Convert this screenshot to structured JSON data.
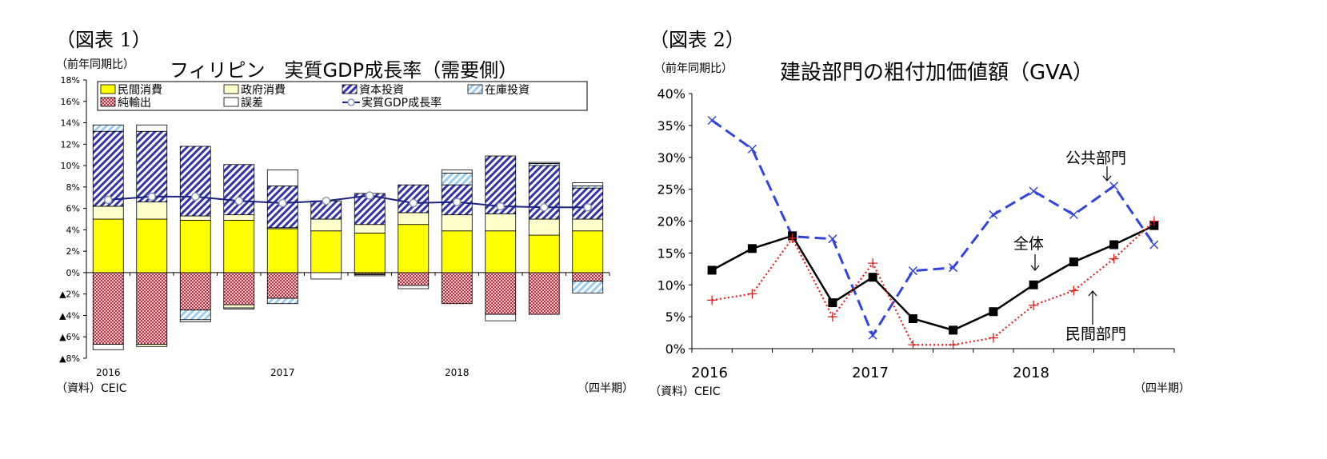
{
  "chart1": {
    "panel_label": "（図表 1）",
    "unit": "（前年同期比）",
    "title": "フィリピン　実質GDP成長率（需要側）",
    "source": "（資料）CEIC",
    "period_label": "（四半期）",
    "chart_data": {
      "type": "bar",
      "stacked": true,
      "categories": [
        "2016Q1",
        "2016Q2",
        "2016Q3",
        "2016Q4",
        "2017Q1",
        "2017Q2",
        "2017Q3",
        "2017Q4",
        "2018Q1",
        "2018Q2",
        "2018Q3",
        "2018Q4"
      ],
      "x_tick_labels": [
        {
          "label": "2016",
          "index": 0
        },
        {
          "label": "2017",
          "index": 4
        },
        {
          "label": "2018",
          "index": 8
        }
      ],
      "ylim": [
        -8,
        18
      ],
      "y_ticks": [
        -8,
        -6,
        -4,
        -2,
        0,
        2,
        4,
        6,
        8,
        10,
        12,
        14,
        16,
        18
      ],
      "y_tick_labels": [
        "▲8%",
        "▲6%",
        "▲4%",
        "▲2%",
        "0%",
        "2%",
        "4%",
        "6%",
        "8%",
        "10%",
        "12%",
        "14%",
        "16%",
        "18%"
      ],
      "series": [
        {
          "name": "民間消費",
          "color": "#ffff00",
          "pattern": "solid",
          "values": [
            5.0,
            5.0,
            4.9,
            4.9,
            4.1,
            3.9,
            3.7,
            4.5,
            3.9,
            3.9,
            3.5,
            3.9
          ]
        },
        {
          "name": "政府消費",
          "color": "#ffffcc",
          "pattern": "solid",
          "values": [
            1.2,
            1.6,
            0.4,
            0.5,
            0.1,
            1.1,
            0.8,
            1.1,
            1.5,
            1.6,
            1.5,
            1.1
          ]
        },
        {
          "name": "資本投資",
          "color": "#3333aa",
          "pattern": "diagonal",
          "values": [
            7.0,
            6.6,
            6.5,
            4.7,
            3.9,
            1.7,
            2.9,
            2.6,
            2.8,
            5.4,
            5.0,
            2.9
          ]
        },
        {
          "name": "在庫投資",
          "color": "#99ccee",
          "pattern": "diagonal-light",
          "values": [
            0.6,
            0,
            0,
            0,
            0,
            0,
            0,
            0,
            1.1,
            0,
            0.2,
            0.2
          ]
        },
        {
          "name": "純輸出",
          "color": "#c04050",
          "pattern": "crosshatch",
          "values": [
            -6.7,
            -6.7,
            -3.5,
            -3.0,
            -2.4,
            0,
            -0.1,
            -1.2,
            -2.9,
            -3.9,
            -3.9,
            -0.8
          ]
        },
        {
          "name": "誤差",
          "color": "#ffffff",
          "pattern": "solid",
          "values": [
            -0.5,
            0.6,
            -0.2,
            -0.1,
            1.5,
            -0.6,
            -0.1,
            -0.3,
            0.3,
            -0.6,
            0.1,
            0.3
          ]
        }
      ],
      "negative_extra": [
        {
          "name": "在庫投資",
          "values": [
            0,
            0,
            -0.9,
            0,
            -0.5,
            0,
            0,
            0,
            0,
            0,
            0,
            -1.1
          ]
        },
        {
          "name": "政府消費",
          "values": [
            0,
            -0.2,
            0,
            -0.3,
            0,
            0,
            -0.1,
            0,
            0,
            0,
            0,
            0
          ]
        }
      ],
      "line": {
        "name": "実質GDP成長率",
        "color": "#1a237e",
        "values": [
          6.8,
          7.1,
          7.1,
          6.7,
          6.5,
          6.7,
          7.2,
          6.5,
          6.6,
          6.2,
          6.1,
          6.1
        ]
      },
      "legend_position": "top"
    }
  },
  "chart2": {
    "panel_label": "（図表 2）",
    "unit": "（前年同期比）",
    "title": "建設部門の粗付加価値額（GVA）",
    "source": "（資料）CEIC",
    "period_label": "（四半期）",
    "chart_data": {
      "type": "line",
      "categories": [
        "2016Q1",
        "2016Q2",
        "2016Q3",
        "2016Q4",
        "2017Q1",
        "2017Q2",
        "2017Q3",
        "2017Q4",
        "2018Q1",
        "2018Q2",
        "2018Q3",
        "2018Q4"
      ],
      "x_tick_labels": [
        {
          "label": "2016",
          "index": 0
        },
        {
          "label": "2017",
          "index": 4
        },
        {
          "label": "2018",
          "index": 8
        }
      ],
      "ylim": [
        0,
        40
      ],
      "y_ticks": [
        0,
        5,
        10,
        15,
        20,
        25,
        30,
        35,
        40
      ],
      "y_tick_labels": [
        "0%",
        "5%",
        "10%",
        "15%",
        "20%",
        "25%",
        "30%",
        "35%",
        "40%"
      ],
      "series": [
        {
          "name": "公共部門",
          "color": "#3344dd",
          "style": "dashed",
          "marker": "x",
          "values": [
            35.8,
            31.3,
            17.6,
            17.2,
            2.1,
            12.2,
            12.7,
            21.0,
            24.7,
            21.0,
            25.5,
            16.3
          ]
        },
        {
          "name": "全体",
          "color": "#000000",
          "style": "solid",
          "marker": "square",
          "values": [
            12.3,
            15.7,
            17.7,
            7.2,
            11.2,
            4.7,
            2.9,
            5.8,
            10.0,
            13.6,
            16.3,
            19.3
          ]
        },
        {
          "name": "民間部門",
          "color": "#dd2222",
          "style": "dotted",
          "marker": "plus",
          "values": [
            7.6,
            8.6,
            17.3,
            5.0,
            13.4,
            0.6,
            0.6,
            1.7,
            6.8,
            9.1,
            14.1,
            20.0
          ]
        }
      ],
      "annotations": [
        "公共部門",
        "全体",
        "民間部門"
      ]
    }
  }
}
